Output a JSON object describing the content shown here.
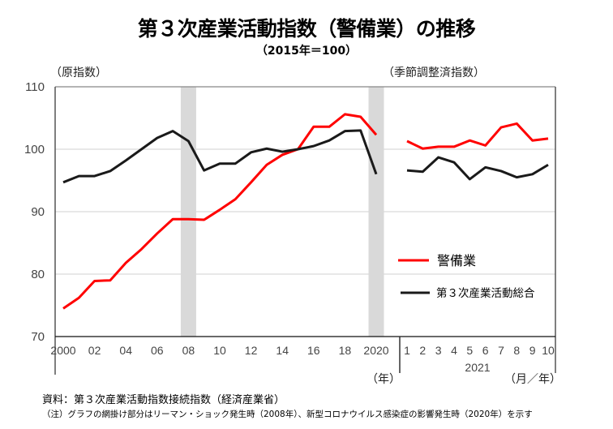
{
  "chart_data": {
    "type": "line",
    "title": "第３次産業活動指数（警備業）の推移",
    "subtitle": "（2015年＝100）",
    "ylabel_left": "（原指数）",
    "ylabel_right": "（季節調整済指数）",
    "ylim": [
      70,
      110
    ],
    "yticks": [
      "70",
      "80",
      "90",
      "100",
      "110"
    ],
    "ytick_values": [
      70,
      80,
      90,
      100,
      110
    ],
    "grid": true,
    "annual": {
      "x": [
        2000,
        2001,
        2002,
        2003,
        2004,
        2005,
        2006,
        2007,
        2008,
        2009,
        2010,
        2011,
        2012,
        2013,
        2014,
        2015,
        2016,
        2017,
        2018,
        2019,
        2020
      ],
      "xtick_labels": [
        "2000",
        "02",
        "04",
        "06",
        "08",
        "10",
        "12",
        "14",
        "16",
        "18",
        "2020"
      ],
      "xtick_years": [
        2000,
        2002,
        2004,
        2006,
        2008,
        2010,
        2012,
        2014,
        2016,
        2018,
        2020
      ],
      "xunit": "（年）",
      "shaded_years": [
        2008,
        2020
      ],
      "series": [
        {
          "name": "警備業",
          "color": "#ff0000",
          "values": [
            74.5,
            76.2,
            78.9,
            79.0,
            81.8,
            84.0,
            86.5,
            88.8,
            88.8,
            88.7,
            90.3,
            92.0,
            94.7,
            97.5,
            99.1,
            100.0,
            103.6,
            103.6,
            105.6,
            105.2,
            102.3
          ]
        },
        {
          "name": "第３次産業活動総合",
          "color": "#1a1a1a",
          "values": [
            94.7,
            95.7,
            95.7,
            96.5,
            98.2,
            100.0,
            101.8,
            102.9,
            101.3,
            96.6,
            97.7,
            97.7,
            99.5,
            100.1,
            99.6,
            100.0,
            100.5,
            101.4,
            102.9,
            103.0,
            96.0
          ]
        }
      ]
    },
    "monthly": {
      "x": [
        "1",
        "2",
        "3",
        "4",
        "5",
        "6",
        "7",
        "8",
        "9",
        "10"
      ],
      "year_label": "2021",
      "xunit": "（月／年）",
      "series": [
        {
          "name": "警備業",
          "color": "#ff0000",
          "values": [
            101.3,
            100.1,
            100.4,
            100.4,
            101.4,
            100.6,
            103.5,
            104.1,
            101.4,
            101.7
          ]
        },
        {
          "name": "第３次産業活動総合",
          "color": "#1a1a1a",
          "values": [
            96.6,
            96.4,
            98.7,
            97.9,
            95.2,
            97.1,
            96.5,
            95.5,
            96.0,
            97.5
          ]
        }
      ]
    },
    "legend": {
      "placement": "lower-right",
      "items": [
        {
          "label": "警備業",
          "color": "#ff0000"
        },
        {
          "label": "第３次産業活動総合",
          "color": "#1a1a1a"
        }
      ]
    },
    "shade_color": "#d9d9d9"
  },
  "footer": {
    "source": "資料：第３次産業活動指数接続指数（経済産業省）",
    "note": "（注）グラフの網掛け部分はリーマン・ショック発生時（2008年）、新型コロナウイルス感染症の影響発生時（2020年）を示す"
  }
}
